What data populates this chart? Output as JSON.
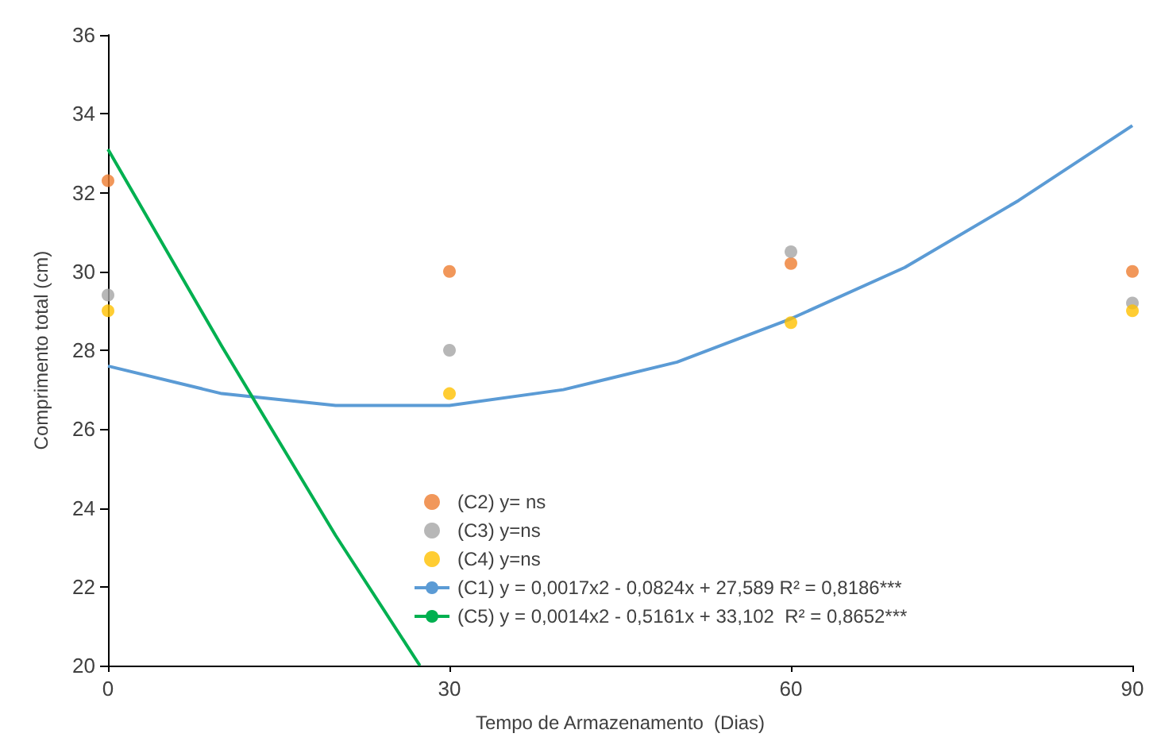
{
  "chart_data": {
    "type": "scatter",
    "xlabel": "Tempo de Armazenamento  (Dias)",
    "ylabel": "Comprimento total (cm)",
    "xlim": [
      0,
      90
    ],
    "xticks": [
      0,
      30,
      60,
      90
    ],
    "ylim": [
      20,
      36
    ],
    "yticks": [
      20,
      22,
      24,
      26,
      28,
      30,
      32,
      34,
      36
    ],
    "grid": false,
    "legend": "bottom",
    "marker": "circle",
    "series": [
      {
        "name": "(C2) y= ns",
        "color": "#ed7d31",
        "x": [
          0,
          30,
          60,
          90
        ],
        "values": [
          32.3,
          30.0,
          30.2,
          30.0
        ]
      },
      {
        "name": "(C3) y=ns",
        "color": "#a5a5a5",
        "x": [
          0,
          30,
          60,
          90
        ],
        "values": [
          29.4,
          28.0,
          30.5,
          29.2
        ]
      },
      {
        "name": "(C4) y=ns",
        "color": "#ffc000",
        "x": [
          0,
          30,
          60,
          90
        ],
        "values": [
          29.0,
          26.9,
          28.7,
          29.0
        ]
      },
      {
        "name": "(C1) y = 0,0017x2 - 0,0824x + 27,589 R² = 0,8186***",
        "type": "line",
        "marker": "none",
        "color": "#5b9bd5",
        "x": [
          0,
          10,
          20,
          25,
          30,
          40,
          50,
          60,
          70,
          80,
          90
        ],
        "values": [
          27.6,
          26.9,
          26.6,
          26.6,
          26.6,
          27.0,
          27.7,
          28.8,
          30.1,
          31.8,
          33.7
        ]
      },
      {
        "name": "(C5) y = 0,0014x2 - 0,5161x + 33,102  R² = 0,8652***",
        "type": "line",
        "marker": "none",
        "color": "#00b050",
        "x": [
          0,
          10,
          20,
          27.4
        ],
        "values": [
          33.1,
          28.1,
          23.3,
          20
        ]
      }
    ]
  }
}
